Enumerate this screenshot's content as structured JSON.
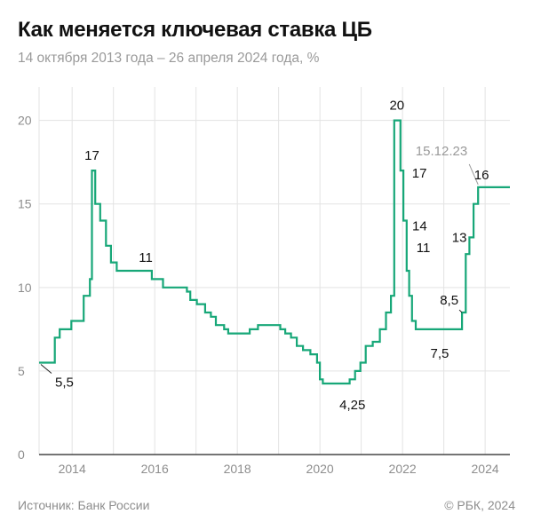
{
  "header": {
    "title": "Как меняется ключевая ставка ЦБ",
    "subtitle": "14 октября 2013 года – 26 апреля 2024 года, %"
  },
  "footer": {
    "source": "Источник: Банк России",
    "copyright": "© РБК, 2024"
  },
  "colors": {
    "line": "#17a778",
    "grid": "#e3e3e3",
    "axis": "#222222",
    "tick_text": "#8d8d8d",
    "annotation": "#111111",
    "annotation_muted": "#9a9a9a"
  },
  "chart_data": {
    "type": "line",
    "step": true,
    "title": "Как меняется ключевая ставка ЦБ",
    "subtitle": "14 октября 2013 года – 26 апреля 2024 года, %",
    "xlabel": "",
    "ylabel": "",
    "xlim": [
      2013.2,
      2024.6
    ],
    "ylim": [
      0,
      22
    ],
    "grid": true,
    "y_ticks": [
      0,
      5,
      10,
      15,
      20
    ],
    "x_ticks": [
      {
        "value": 2013.2,
        "label": ""
      },
      {
        "value": 2014,
        "label": "2014"
      },
      {
        "value": 2015,
        "label": ""
      },
      {
        "value": 2016,
        "label": "2016"
      },
      {
        "value": 2017,
        "label": ""
      },
      {
        "value": 2018,
        "label": "2018"
      },
      {
        "value": 2019,
        "label": ""
      },
      {
        "value": 2020,
        "label": "2020"
      },
      {
        "value": 2021,
        "label": ""
      },
      {
        "value": 2022,
        "label": "2022"
      },
      {
        "value": 2023,
        "label": ""
      },
      {
        "value": 2024,
        "label": "2024"
      }
    ],
    "series": [
      {
        "points": [
          [
            2013.2,
            5.5
          ],
          [
            2013.58,
            7.0
          ],
          [
            2013.7,
            7.5
          ],
          [
            2013.98,
            8.0
          ],
          [
            2014.28,
            9.5
          ],
          [
            2014.43,
            10.5
          ],
          [
            2014.48,
            17.0
          ],
          [
            2014.56,
            15.0
          ],
          [
            2014.68,
            14.0
          ],
          [
            2014.82,
            12.5
          ],
          [
            2014.94,
            11.5
          ],
          [
            2015.08,
            11.0
          ],
          [
            2015.93,
            10.5
          ],
          [
            2016.2,
            10.0
          ],
          [
            2016.78,
            9.75
          ],
          [
            2016.86,
            9.25
          ],
          [
            2017.02,
            9.0
          ],
          [
            2017.22,
            8.5
          ],
          [
            2017.36,
            8.25
          ],
          [
            2017.48,
            7.75
          ],
          [
            2017.68,
            7.5
          ],
          [
            2017.78,
            7.25
          ],
          [
            2018.3,
            7.5
          ],
          [
            2018.5,
            7.75
          ],
          [
            2019.04,
            7.5
          ],
          [
            2019.16,
            7.25
          ],
          [
            2019.3,
            7.0
          ],
          [
            2019.44,
            6.5
          ],
          [
            2019.59,
            6.25
          ],
          [
            2019.77,
            6.0
          ],
          [
            2019.93,
            5.5
          ],
          [
            2020.0,
            4.5
          ],
          [
            2020.07,
            4.25
          ],
          [
            2020.72,
            4.5
          ],
          [
            2020.85,
            5.0
          ],
          [
            2020.98,
            5.5
          ],
          [
            2021.11,
            6.5
          ],
          [
            2021.28,
            6.75
          ],
          [
            2021.45,
            7.5
          ],
          [
            2021.6,
            8.5
          ],
          [
            2021.72,
            9.5
          ],
          [
            2021.8,
            20.0
          ],
          [
            2021.95,
            17.0
          ],
          [
            2022.02,
            14.0
          ],
          [
            2022.1,
            11.0
          ],
          [
            2022.16,
            9.5
          ],
          [
            2022.23,
            8.0
          ],
          [
            2022.32,
            7.5
          ],
          [
            2023.44,
            8.5
          ],
          [
            2023.53,
            12.0
          ],
          [
            2023.62,
            13.0
          ],
          [
            2023.72,
            15.0
          ],
          [
            2023.83,
            16.0
          ],
          [
            2024.6,
            16.0
          ]
        ]
      }
    ],
    "annotations": [
      {
        "text": "5,5",
        "x": 2013.2,
        "y": 5.5,
        "muted": false
      },
      {
        "text": "17",
        "x": 2014.48,
        "y": 17.0,
        "muted": false
      },
      {
        "text": "11",
        "x": 2015.25,
        "y": 11.0,
        "muted": false
      },
      {
        "text": "4,25",
        "x": 2020.4,
        "y": 4.25,
        "muted": false
      },
      {
        "text": "20",
        "x": 2021.8,
        "y": 20.0,
        "muted": false
      },
      {
        "text": "17",
        "x": 2021.95,
        "y": 17.0,
        "muted": false
      },
      {
        "text": "14",
        "x": 2022.02,
        "y": 14.0,
        "muted": false
      },
      {
        "text": "11",
        "x": 2022.1,
        "y": 11.0,
        "muted": false
      },
      {
        "text": "7,5",
        "x": 2022.9,
        "y": 7.5,
        "muted": false
      },
      {
        "text": "8,5",
        "x": 2023.44,
        "y": 8.5,
        "muted": false
      },
      {
        "text": "13",
        "x": 2023.62,
        "y": 13.0,
        "muted": false
      },
      {
        "text": "15.12.23",
        "x": 2023.83,
        "y": 16.0,
        "muted": true
      },
      {
        "text": "16",
        "x": 2024.1,
        "y": 16.0,
        "muted": false
      }
    ]
  }
}
